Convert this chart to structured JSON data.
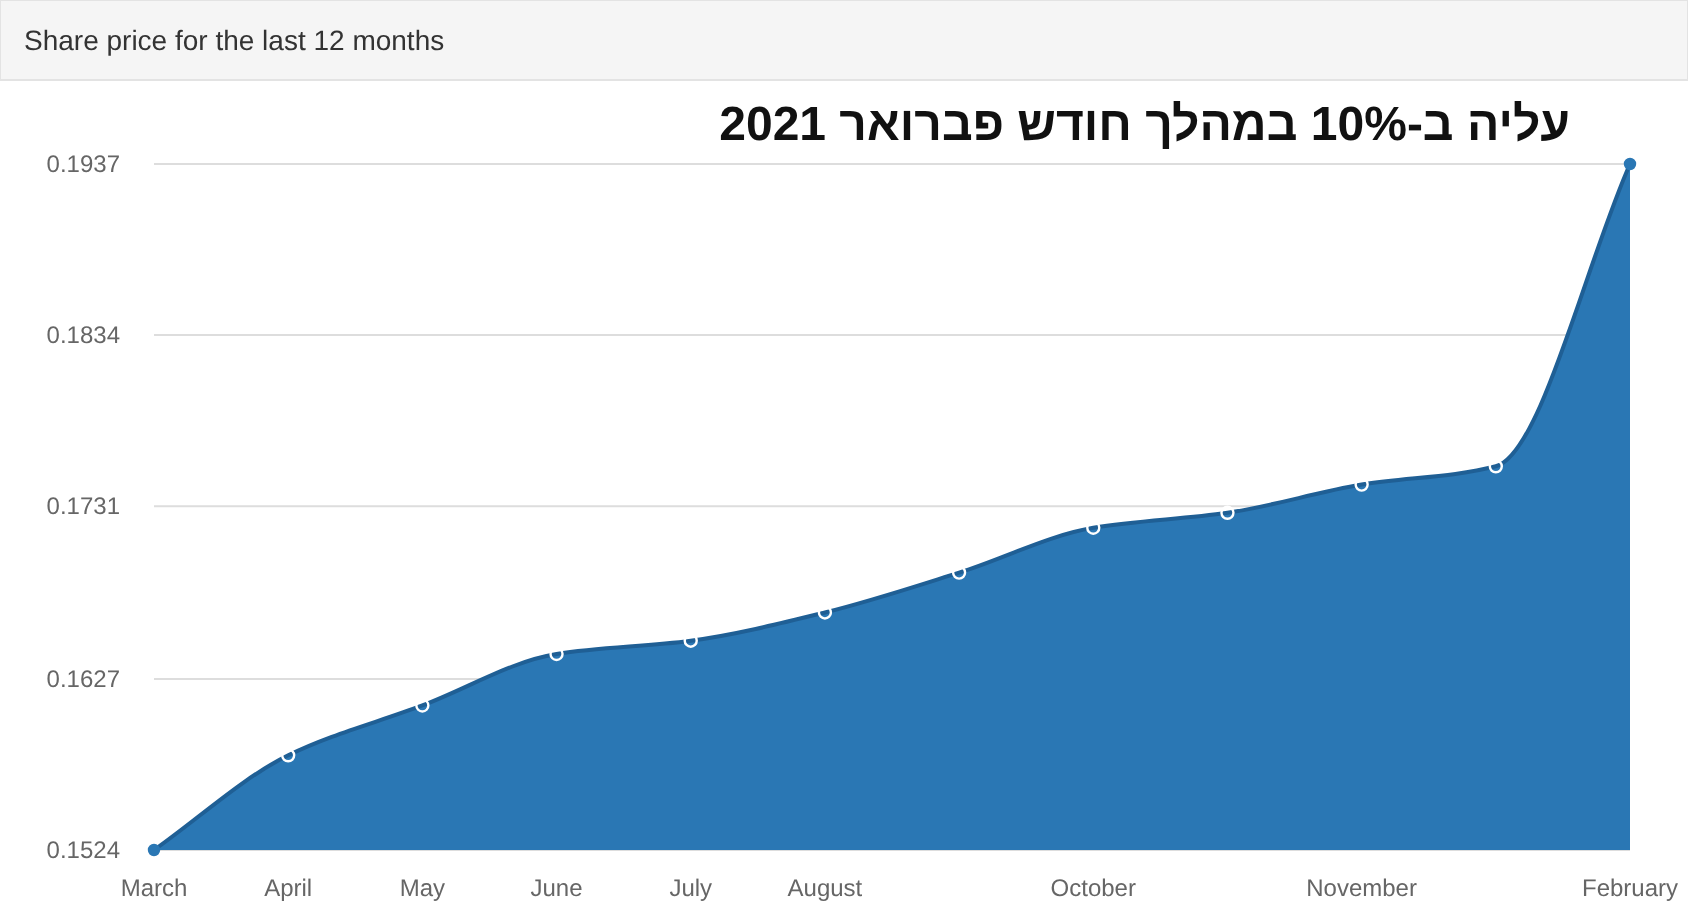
{
  "chart_data": {
    "type": "area",
    "title": "Share price for the last 12 months",
    "subtitle": "עליה ב-10% במהלך חודש פברואר 2021",
    "categories": [
      "March",
      "April",
      "May",
      "June",
      "July",
      "August",
      null,
      "October",
      null,
      "November",
      null,
      "February"
    ],
    "values": [
      0.1524,
      0.1581,
      0.1611,
      0.1642,
      0.165,
      0.1667,
      0.1691,
      0.1718,
      0.1727,
      0.1744,
      0.1755,
      0.1937
    ],
    "color": "#2a77b4",
    "ylim": [
      0.1524,
      0.1937
    ],
    "yticks": [
      0.1524,
      0.1627,
      0.1731,
      0.1834,
      0.1937
    ],
    "grid": "y",
    "marker": "circle"
  }
}
